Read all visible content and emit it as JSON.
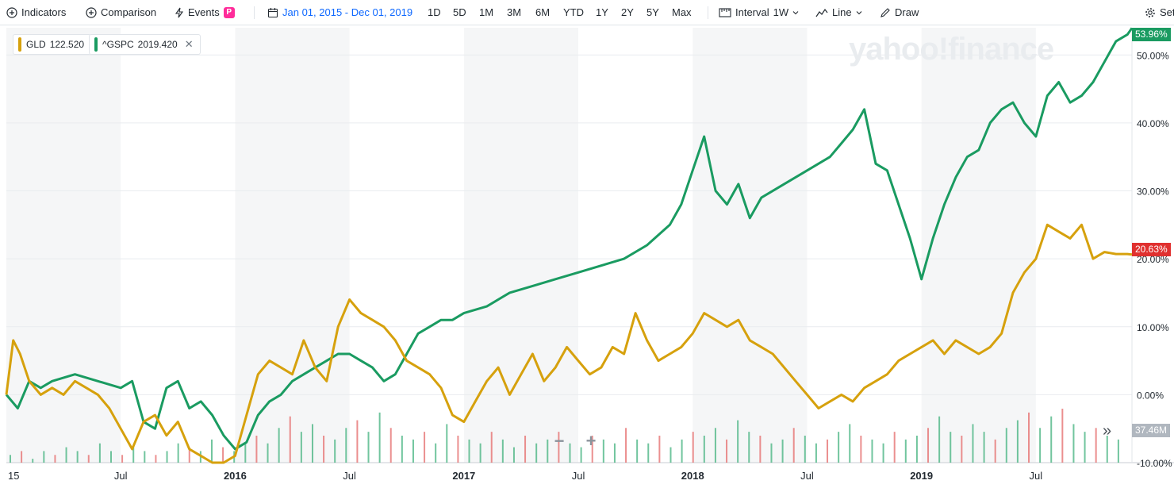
{
  "toolbar": {
    "indicators": "Indicators",
    "comparison": "Comparison",
    "events": "Events",
    "events_badge": "P",
    "date_range": "Jan 01, 2015 - Dec 01, 2019",
    "periods": [
      "1D",
      "5D",
      "1M",
      "3M",
      "6M",
      "YTD",
      "1Y",
      "2Y",
      "5Y",
      "Max"
    ],
    "interval_label": "Interval",
    "interval_value": "1W",
    "chart_type": "Line",
    "draw": "Draw",
    "settings": "Set"
  },
  "legend": [
    {
      "symbol": "GLD",
      "value": "122.520",
      "color": "#d6a10d"
    },
    {
      "symbol": "^GSPC",
      "value": "2019.420",
      "color": "#1a9b61"
    }
  ],
  "watermark": "yahoo!finance",
  "zoom": {
    "minus": "−",
    "plus": "+"
  },
  "expand": "»",
  "tags": {
    "gspc_last": "53.96%",
    "gld_last": "20.63%",
    "volume": "37.46M"
  },
  "chart_data": {
    "type": "line",
    "y_ticks": [
      "50.00%",
      "40.00%",
      "30.00%",
      "20.00%",
      "10.00%",
      "0.00%",
      "-10.00%"
    ],
    "ylim": [
      -10,
      54
    ],
    "x_ticks": [
      "15",
      "Jul",
      "2016",
      "Jul",
      "2017",
      "Jul",
      "2018",
      "Jul",
      "2019",
      "Jul"
    ],
    "x_tick_years": [
      2015.0,
      2015.5,
      2016.0,
      2016.5,
      2017.0,
      2017.5,
      2018.0,
      2018.5,
      2019.0,
      2019.5
    ],
    "x_range": [
      2015.0,
      2019.92
    ],
    "series": [
      {
        "name": "^GSPC",
        "color": "#1a9b61",
        "x": [
          2015.0,
          2015.05,
          2015.1,
          2015.15,
          2015.2,
          2015.3,
          2015.4,
          2015.5,
          2015.55,
          2015.6,
          2015.65,
          2015.7,
          2015.75,
          2015.8,
          2015.85,
          2015.9,
          2015.95,
          2016.0,
          2016.05,
          2016.1,
          2016.15,
          2016.2,
          2016.25,
          2016.3,
          2016.35,
          2016.4,
          2016.45,
          2016.5,
          2016.55,
          2016.6,
          2016.65,
          2016.7,
          2016.75,
          2016.8,
          2016.85,
          2016.9,
          2016.95,
          2017.0,
          2017.1,
          2017.2,
          2017.3,
          2017.4,
          2017.5,
          2017.6,
          2017.7,
          2017.8,
          2017.9,
          2017.95,
          2018.0,
          2018.05,
          2018.1,
          2018.15,
          2018.2,
          2018.25,
          2018.3,
          2018.4,
          2018.5,
          2018.6,
          2018.65,
          2018.7,
          2018.75,
          2018.8,
          2018.85,
          2018.9,
          2018.95,
          2019.0,
          2019.05,
          2019.1,
          2019.15,
          2019.2,
          2019.25,
          2019.3,
          2019.35,
          2019.4,
          2019.45,
          2019.5,
          2019.55,
          2019.6,
          2019.65,
          2019.7,
          2019.75,
          2019.8,
          2019.85,
          2019.9,
          2019.92
        ],
        "values": [
          0,
          -2,
          2,
          1,
          2,
          3,
          2,
          1,
          2,
          -4,
          -5,
          1,
          2,
          -2,
          -1,
          -3,
          -6,
          -8,
          -7,
          -3,
          -1,
          0,
          2,
          3,
          4,
          5,
          6,
          6,
          5,
          4,
          2,
          3,
          6,
          9,
          10,
          11,
          11,
          12,
          13,
          15,
          16,
          17,
          18,
          19,
          20,
          22,
          25,
          28,
          33,
          38,
          30,
          28,
          31,
          26,
          29,
          31,
          33,
          35,
          37,
          39,
          42,
          34,
          33,
          28,
          23,
          17,
          23,
          28,
          32,
          35,
          36,
          40,
          42,
          43,
          40,
          38,
          44,
          46,
          43,
          44,
          46,
          49,
          52,
          53,
          53.96
        ]
      },
      {
        "name": "GLD",
        "color": "#d6a10d",
        "x": [
          2015.0,
          2015.03,
          2015.06,
          2015.1,
          2015.15,
          2015.2,
          2015.25,
          2015.3,
          2015.35,
          2015.4,
          2015.45,
          2015.5,
          2015.55,
          2015.6,
          2015.65,
          2015.7,
          2015.75,
          2015.8,
          2015.85,
          2015.9,
          2015.95,
          2016.0,
          2016.05,
          2016.1,
          2016.15,
          2016.2,
          2016.25,
          2016.3,
          2016.35,
          2016.4,
          2016.45,
          2016.5,
          2016.55,
          2016.6,
          2016.65,
          2016.7,
          2016.75,
          2016.8,
          2016.85,
          2016.9,
          2016.95,
          2017.0,
          2017.05,
          2017.1,
          2017.15,
          2017.2,
          2017.25,
          2017.3,
          2017.35,
          2017.4,
          2017.45,
          2017.5,
          2017.55,
          2017.6,
          2017.65,
          2017.7,
          2017.75,
          2017.8,
          2017.85,
          2017.9,
          2017.95,
          2018.0,
          2018.05,
          2018.1,
          2018.15,
          2018.2,
          2018.25,
          2018.3,
          2018.35,
          2018.4,
          2018.45,
          2018.5,
          2018.55,
          2018.6,
          2018.65,
          2018.7,
          2018.75,
          2018.8,
          2018.85,
          2018.9,
          2018.95,
          2019.0,
          2019.05,
          2019.1,
          2019.15,
          2019.2,
          2019.25,
          2019.3,
          2019.35,
          2019.4,
          2019.45,
          2019.5,
          2019.55,
          2019.6,
          2019.65,
          2019.7,
          2019.75,
          2019.8,
          2019.85,
          2019.9,
          2019.92
        ],
        "values": [
          0,
          8,
          6,
          2,
          0,
          1,
          0,
          2,
          1,
          0,
          -2,
          -5,
          -8,
          -4,
          -3,
          -6,
          -4,
          -8,
          -9,
          -10,
          -10,
          -9,
          -3,
          3,
          5,
          4,
          3,
          8,
          4,
          2,
          10,
          14,
          12,
          11,
          10,
          8,
          5,
          4,
          3,
          1,
          -3,
          -4,
          -1,
          2,
          4,
          0,
          3,
          6,
          2,
          4,
          7,
          5,
          3,
          4,
          7,
          6,
          12,
          8,
          5,
          6,
          7,
          9,
          12,
          11,
          10,
          11,
          8,
          7,
          6,
          4,
          2,
          0,
          -2,
          -1,
          0,
          -1,
          1,
          2,
          3,
          5,
          6,
          7,
          8,
          6,
          8,
          7,
          6,
          7,
          9,
          15,
          18,
          20,
          25,
          24,
          23,
          25,
          20,
          21,
          20.7,
          20.7,
          20.63
        ]
      }
    ],
    "volume": [
      2,
      3,
      1,
      3,
      2,
      4,
      3,
      2,
      5,
      3,
      2,
      4,
      3,
      2,
      3,
      5,
      4,
      3,
      6,
      4,
      3,
      5,
      7,
      5,
      9,
      12,
      8,
      10,
      7,
      6,
      9,
      11,
      8,
      13,
      9,
      7,
      6,
      8,
      5,
      10,
      7,
      6,
      5,
      8,
      6,
      4,
      7,
      5,
      6,
      8,
      5,
      4,
      7,
      6,
      5,
      9,
      6,
      5,
      7,
      4,
      6,
      8,
      7,
      9,
      6,
      11,
      8,
      7,
      5,
      6,
      9,
      7,
      5,
      6,
      8,
      10,
      7,
      6,
      5,
      8,
      6,
      7,
      9,
      12,
      8,
      7,
      10,
      8,
      6,
      9,
      11,
      13,
      9,
      12,
      14,
      10,
      8,
      9,
      7,
      6
    ]
  }
}
